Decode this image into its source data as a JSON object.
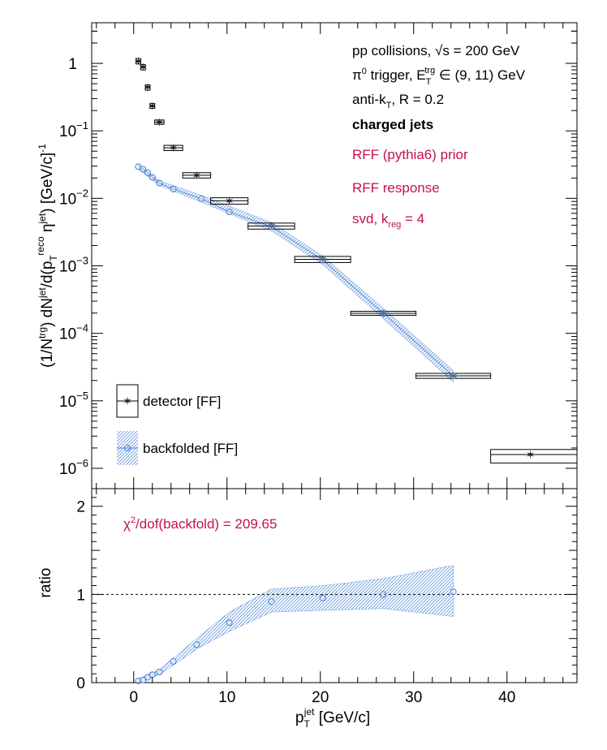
{
  "chart_data": [
    {
      "type": "scatter",
      "panel": "top",
      "yscale": "log",
      "ylim": [
        5e-07,
        4
      ],
      "xlim": [
        -4.5,
        47.5
      ],
      "ylabel": {
        "lead": "(1/N",
        "trg": "trg",
        "mid": ") dN",
        "jet": "jet",
        "d": "/d(p",
        "T": "T",
        "reco": "reco",
        "eta": " η",
        "jet2": "jet",
        "tail": ") [GeV/c]",
        "exp": "-1"
      },
      "ytick_labels": [
        {
          "v": 1,
          "mant": "1",
          "exp": ""
        },
        {
          "v": 0.1,
          "mant": "10",
          "exp": "−1"
        },
        {
          "v": 0.01,
          "mant": "10",
          "exp": "−2"
        },
        {
          "v": 0.001,
          "mant": "10",
          "exp": "−3"
        },
        {
          "v": 0.0001,
          "mant": "10",
          "exp": "−4"
        },
        {
          "v": 1e-05,
          "mant": "10",
          "exp": "−5"
        },
        {
          "v": 1e-06,
          "mant": "10",
          "exp": "−6"
        }
      ],
      "annotations": {
        "line1": "pp collisions, √s = 200 GeV",
        "line2a": "π",
        "line2sup": "0",
        "line2b": " trigger, E",
        "line2sub": "T",
        "line2sup2": "trg",
        "line2c": " ∈ (9, 11) GeV",
        "line3a": "anti-k",
        "line3sub": "T",
        "line3b": ", R = 0.2",
        "line4": "charged jets",
        "line5": "RFF (pythia6) prior",
        "line6": "RFF response",
        "line7a": "svd, k",
        "line7sub": "reg",
        "line7b": " = 4"
      },
      "legend": [
        {
          "name": "detector [FF]",
          "style": "black-star-box"
        },
        {
          "name": "backfolded [FF]",
          "style": "blue-open-circle-band"
        }
      ],
      "series": [
        {
          "name": "detector [FF]",
          "color": "#222222",
          "points": [
            {
              "x": 0.5,
              "y": 1.08,
              "xlo": 0.25,
              "xhi": 0.75,
              "ylo": 0.98,
              "yhi": 1.18
            },
            {
              "x": 1.0,
              "y": 0.88,
              "xlo": 0.75,
              "xhi": 1.25,
              "ylo": 0.8,
              "yhi": 0.96
            },
            {
              "x": 1.5,
              "y": 0.44,
              "xlo": 1.25,
              "xhi": 1.75,
              "ylo": 0.4,
              "yhi": 0.48
            },
            {
              "x": 2.0,
              "y": 0.235,
              "xlo": 1.75,
              "xhi": 2.25,
              "ylo": 0.215,
              "yhi": 0.255
            },
            {
              "x": 2.75,
              "y": 0.135,
              "xlo": 2.25,
              "xhi": 3.25,
              "ylo": 0.125,
              "yhi": 0.145
            },
            {
              "x": 4.25,
              "y": 0.056,
              "xlo": 3.25,
              "xhi": 5.25,
              "ylo": 0.051,
              "yhi": 0.061
            },
            {
              "x": 6.75,
              "y": 0.022,
              "xlo": 5.25,
              "xhi": 8.25,
              "ylo": 0.02,
              "yhi": 0.024
            },
            {
              "x": 10.25,
              "y": 0.0092,
              "xlo": 8.25,
              "xhi": 12.25,
              "ylo": 0.0082,
              "yhi": 0.0102
            },
            {
              "x": 14.75,
              "y": 0.0039,
              "xlo": 12.25,
              "xhi": 17.25,
              "ylo": 0.0035,
              "yhi": 0.0043
            },
            {
              "x": 20.25,
              "y": 0.00125,
              "xlo": 17.25,
              "xhi": 23.25,
              "ylo": 0.00112,
              "yhi": 0.00138
            },
            {
              "x": 26.75,
              "y": 0.000198,
              "xlo": 23.25,
              "xhi": 30.25,
              "ylo": 0.000185,
              "yhi": 0.000212
            },
            {
              "x": 34.25,
              "y": 2.35e-05,
              "xlo": 30.25,
              "xhi": 38.25,
              "ylo": 2.15e-05,
              "yhi": 2.55e-05
            },
            {
              "x": 42.5,
              "y": 1.6e-06,
              "xlo": 38.25,
              "xhi": 47.5,
              "ylo": 1.2e-06,
              "yhi": 1.9e-06
            }
          ]
        },
        {
          "name": "backfolded [FF]",
          "color": "#4a7fd4",
          "points": [
            {
              "x": 0.5,
              "y": 0.0295
            },
            {
              "x": 1.0,
              "y": 0.027
            },
            {
              "x": 1.5,
              "y": 0.024
            },
            {
              "x": 2.0,
              "y": 0.0205
            },
            {
              "x": 2.75,
              "y": 0.0168
            },
            {
              "x": 4.25,
              "y": 0.0137
            },
            {
              "x": 7.25,
              "y": 0.0099
            },
            {
              "x": 10.25,
              "y": 0.0063
            },
            {
              "x": 14.75,
              "y": 0.0038
            },
            {
              "x": 20.25,
              "y": 0.00122
            },
            {
              "x": 26.75,
              "y": 0.000198
            },
            {
              "x": 34.25,
              "y": 2.35e-05
            }
          ],
          "band": [
            {
              "x": 0.5,
              "lo": 0.027,
              "hi": 0.032
            },
            {
              "x": 2.75,
              "lo": 0.0155,
              "hi": 0.0182
            },
            {
              "x": 7.25,
              "lo": 0.0088,
              "hi": 0.0111
            },
            {
              "x": 14.75,
              "lo": 0.0033,
              "hi": 0.0044
            },
            {
              "x": 20.25,
              "lo": 0.00105,
              "hi": 0.0014
            },
            {
              "x": 26.75,
              "lo": 0.000165,
              "hi": 0.000235
            },
            {
              "x": 34.25,
              "lo": 1.9e-05,
              "hi": 2.8e-05
            }
          ]
        }
      ]
    },
    {
      "type": "scatter",
      "panel": "bottom",
      "ylim": [
        0,
        2.2
      ],
      "xlim": [
        -4.5,
        47.5
      ],
      "ylabel": "ratio",
      "yticks": [
        "0",
        "1",
        "2"
      ],
      "xlabel_a": "p",
      "xlabel_sub": "T",
      "xlabel_sup": "jet",
      "xlabel_b": " [GeV/c]",
      "xticks": [
        "0",
        "10",
        "20",
        "30",
        "40"
      ],
      "annotation_a": "χ",
      "annotation_sup": "2",
      "annotation_b": "/dof(backfold) = 209.65",
      "reference_line": 1,
      "series": [
        {
          "name": "backfolded/detector",
          "color": "#4a7fd4",
          "points": [
            {
              "x": 0.5,
              "y": 0.02
            },
            {
              "x": 1.0,
              "y": 0.03
            },
            {
              "x": 1.5,
              "y": 0.06
            },
            {
              "x": 2.0,
              "y": 0.09
            },
            {
              "x": 2.75,
              "y": 0.12
            },
            {
              "x": 4.25,
              "y": 0.24
            },
            {
              "x": 6.75,
              "y": 0.43
            },
            {
              "x": 10.25,
              "y": 0.68
            },
            {
              "x": 14.75,
              "y": 0.92
            },
            {
              "x": 20.25,
              "y": 0.96
            },
            {
              "x": 26.75,
              "y": 1.0
            },
            {
              "x": 34.25,
              "y": 1.03
            }
          ],
          "band": [
            {
              "x": 0.5,
              "lo": 0.0,
              "hi": 0.04
            },
            {
              "x": 2.75,
              "lo": 0.09,
              "hi": 0.15
            },
            {
              "x": 6.75,
              "lo": 0.38,
              "hi": 0.5
            },
            {
              "x": 10.25,
              "lo": 0.58,
              "hi": 0.8
            },
            {
              "x": 14.75,
              "lo": 0.8,
              "hi": 1.06
            },
            {
              "x": 20.25,
              "lo": 0.82,
              "hi": 1.1
            },
            {
              "x": 26.75,
              "lo": 0.84,
              "hi": 1.18
            },
            {
              "x": 34.25,
              "lo": 0.75,
              "hi": 1.33
            }
          ]
        }
      ]
    }
  ]
}
